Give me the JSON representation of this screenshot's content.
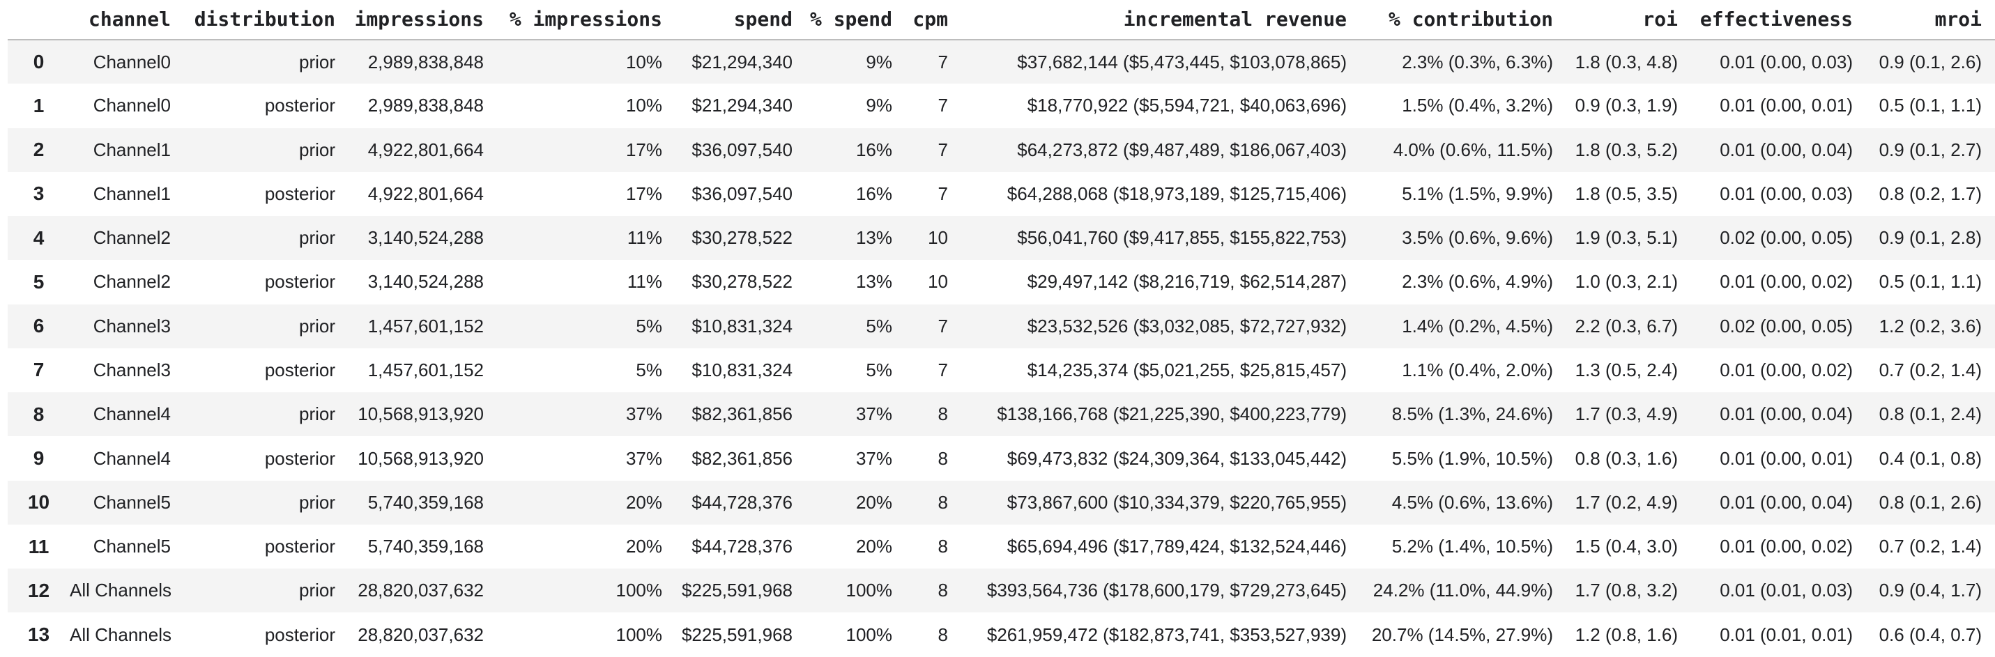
{
  "table": {
    "index_header": "",
    "columns": [
      "channel",
      "distribution",
      "impressions",
      "% impressions",
      "spend",
      "% spend",
      "cpm",
      "incremental revenue",
      "% contribution",
      "roi",
      "effectiveness",
      "mroi"
    ],
    "rows": [
      {
        "index": "0",
        "cells": [
          "Channel0",
          "prior",
          "2,989,838,848",
          "10%",
          "$21,294,340",
          "9%",
          "7",
          "$37,682,144 ($5,473,445, $103,078,865)",
          "2.3% (0.3%, 6.3%)",
          "1.8 (0.3, 4.8)",
          "0.01 (0.00, 0.03)",
          "0.9 (0.1, 2.6)"
        ]
      },
      {
        "index": "1",
        "cells": [
          "Channel0",
          "posterior",
          "2,989,838,848",
          "10%",
          "$21,294,340",
          "9%",
          "7",
          "$18,770,922 ($5,594,721, $40,063,696)",
          "1.5% (0.4%, 3.2%)",
          "0.9 (0.3, 1.9)",
          "0.01 (0.00, 0.01)",
          "0.5 (0.1, 1.1)"
        ]
      },
      {
        "index": "2",
        "cells": [
          "Channel1",
          "prior",
          "4,922,801,664",
          "17%",
          "$36,097,540",
          "16%",
          "7",
          "$64,273,872 ($9,487,489, $186,067,403)",
          "4.0% (0.6%, 11.5%)",
          "1.8 (0.3, 5.2)",
          "0.01 (0.00, 0.04)",
          "0.9 (0.1, 2.7)"
        ]
      },
      {
        "index": "3",
        "cells": [
          "Channel1",
          "posterior",
          "4,922,801,664",
          "17%",
          "$36,097,540",
          "16%",
          "7",
          "$64,288,068 ($18,973,189, $125,715,406)",
          "5.1% (1.5%, 9.9%)",
          "1.8 (0.5, 3.5)",
          "0.01 (0.00, 0.03)",
          "0.8 (0.2, 1.7)"
        ]
      },
      {
        "index": "4",
        "cells": [
          "Channel2",
          "prior",
          "3,140,524,288",
          "11%",
          "$30,278,522",
          "13%",
          "10",
          "$56,041,760 ($9,417,855, $155,822,753)",
          "3.5% (0.6%, 9.6%)",
          "1.9 (0.3, 5.1)",
          "0.02 (0.00, 0.05)",
          "0.9 (0.1, 2.8)"
        ]
      },
      {
        "index": "5",
        "cells": [
          "Channel2",
          "posterior",
          "3,140,524,288",
          "11%",
          "$30,278,522",
          "13%",
          "10",
          "$29,497,142 ($8,216,719, $62,514,287)",
          "2.3% (0.6%, 4.9%)",
          "1.0 (0.3, 2.1)",
          "0.01 (0.00, 0.02)",
          "0.5 (0.1, 1.1)"
        ]
      },
      {
        "index": "6",
        "cells": [
          "Channel3",
          "prior",
          "1,457,601,152",
          "5%",
          "$10,831,324",
          "5%",
          "7",
          "$23,532,526 ($3,032,085, $72,727,932)",
          "1.4% (0.2%, 4.5%)",
          "2.2 (0.3, 6.7)",
          "0.02 (0.00, 0.05)",
          "1.2 (0.2, 3.6)"
        ]
      },
      {
        "index": "7",
        "cells": [
          "Channel3",
          "posterior",
          "1,457,601,152",
          "5%",
          "$10,831,324",
          "5%",
          "7",
          "$14,235,374 ($5,021,255, $25,815,457)",
          "1.1% (0.4%, 2.0%)",
          "1.3 (0.5, 2.4)",
          "0.01 (0.00, 0.02)",
          "0.7 (0.2, 1.4)"
        ]
      },
      {
        "index": "8",
        "cells": [
          "Channel4",
          "prior",
          "10,568,913,920",
          "37%",
          "$82,361,856",
          "37%",
          "8",
          "$138,166,768 ($21,225,390, $400,223,779)",
          "8.5% (1.3%, 24.6%)",
          "1.7 (0.3, 4.9)",
          "0.01 (0.00, 0.04)",
          "0.8 (0.1, 2.4)"
        ]
      },
      {
        "index": "9",
        "cells": [
          "Channel4",
          "posterior",
          "10,568,913,920",
          "37%",
          "$82,361,856",
          "37%",
          "8",
          "$69,473,832 ($24,309,364, $133,045,442)",
          "5.5% (1.9%, 10.5%)",
          "0.8 (0.3, 1.6)",
          "0.01 (0.00, 0.01)",
          "0.4 (0.1, 0.8)"
        ]
      },
      {
        "index": "10",
        "cells": [
          "Channel5",
          "prior",
          "5,740,359,168",
          "20%",
          "$44,728,376",
          "20%",
          "8",
          "$73,867,600 ($10,334,379, $220,765,955)",
          "4.5% (0.6%, 13.6%)",
          "1.7 (0.2, 4.9)",
          "0.01 (0.00, 0.04)",
          "0.8 (0.1, 2.6)"
        ]
      },
      {
        "index": "11",
        "cells": [
          "Channel5",
          "posterior",
          "5,740,359,168",
          "20%",
          "$44,728,376",
          "20%",
          "8",
          "$65,694,496 ($17,789,424, $132,524,446)",
          "5.2% (1.4%, 10.5%)",
          "1.5 (0.4, 3.0)",
          "0.01 (0.00, 0.02)",
          "0.7 (0.2, 1.4)"
        ]
      },
      {
        "index": "12",
        "cells": [
          "All Channels",
          "prior",
          "28,820,037,632",
          "100%",
          "$225,591,968",
          "100%",
          "8",
          "$393,564,736 ($178,600,179, $729,273,645)",
          "24.2% (11.0%, 44.9%)",
          "1.7 (0.8, 3.2)",
          "0.01 (0.01, 0.03)",
          "0.9 (0.4, 1.7)"
        ]
      },
      {
        "index": "13",
        "cells": [
          "All Channels",
          "posterior",
          "28,820,037,632",
          "100%",
          "$225,591,968",
          "100%",
          "8",
          "$261,959,472 ($182,873,741, $353,527,939)",
          "20.7% (14.5%, 27.9%)",
          "1.2 (0.8, 1.6)",
          "0.01 (0.01, 0.01)",
          "0.6 (0.4, 0.7)"
        ]
      }
    ]
  },
  "colors": {
    "text": "#202124",
    "row_stripe": "#f4f4f4",
    "header_border": "#bdbdbd",
    "background": "#ffffff"
  }
}
